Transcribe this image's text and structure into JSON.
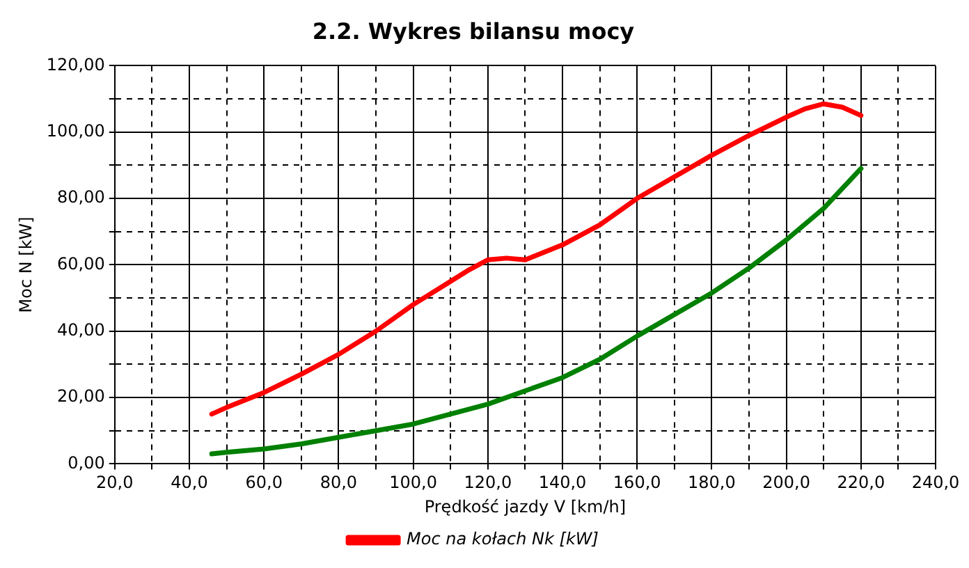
{
  "chart_data": {
    "type": "line",
    "title": "2.2. Wykres bilansu mocy",
    "xlabel": "Prędkość jazdy V [km/h]",
    "ylabel": "Moc N [kW]",
    "xlim": [
      20,
      240
    ],
    "ylim": [
      0,
      120
    ],
    "xticks": [
      {
        "value": 20,
        "label": "20,0"
      },
      {
        "value": 30,
        "label": null
      },
      {
        "value": 40,
        "label": "40,0"
      },
      {
        "value": 50,
        "label": null
      },
      {
        "value": 60,
        "label": "60,0"
      },
      {
        "value": 70,
        "label": null
      },
      {
        "value": 80,
        "label": "80,0"
      },
      {
        "value": 90,
        "label": null
      },
      {
        "value": 100,
        "label": "100,0"
      },
      {
        "value": 110,
        "label": null
      },
      {
        "value": 120,
        "label": "120,0"
      },
      {
        "value": 130,
        "label": null
      },
      {
        "value": 140,
        "label": "140,0"
      },
      {
        "value": 150,
        "label": null
      },
      {
        "value": 160,
        "label": "160,0"
      },
      {
        "value": 170,
        "label": null
      },
      {
        "value": 180,
        "label": "180,0"
      },
      {
        "value": 190,
        "label": null
      },
      {
        "value": 200,
        "label": "200,0"
      },
      {
        "value": 210,
        "label": null
      },
      {
        "value": 220,
        "label": "220,0"
      },
      {
        "value": 230,
        "label": null
      },
      {
        "value": 240,
        "label": "240,0"
      }
    ],
    "yticks": [
      {
        "value": 0,
        "label": "0,00"
      },
      {
        "value": 10,
        "label": null
      },
      {
        "value": 20,
        "label": "20,00"
      },
      {
        "value": 30,
        "label": null
      },
      {
        "value": 40,
        "label": "40,00"
      },
      {
        "value": 50,
        "label": null
      },
      {
        "value": 60,
        "label": "60,00"
      },
      {
        "value": 70,
        "label": null
      },
      {
        "value": 80,
        "label": "80,00"
      },
      {
        "value": 90,
        "label": null
      },
      {
        "value": 100,
        "label": "100,00"
      },
      {
        "value": 110,
        "label": null
      },
      {
        "value": 120,
        "label": "120,00"
      }
    ],
    "grid": true,
    "legend": "bottom",
    "marker": "none",
    "line_style": "solid",
    "series": [
      {
        "name": "Moc na kołach Nk [kW]",
        "color": "#ff0000",
        "x": [
          46,
          50,
          60,
          70,
          80,
          90,
          100,
          110,
          115,
          120,
          125,
          130,
          140,
          150,
          160,
          170,
          180,
          190,
          200,
          205,
          210,
          215,
          220
        ],
        "values": [
          15,
          17,
          21.5,
          27,
          33,
          40,
          48,
          55,
          58.5,
          61.5,
          62,
          61.5,
          66,
          72,
          80,
          86.5,
          93,
          99,
          104.5,
          107,
          108.5,
          107.5,
          105
        ]
      },
      {
        "color": "#008000",
        "x": [
          46,
          50,
          60,
          70,
          80,
          90,
          100,
          110,
          120,
          130,
          140,
          150,
          160,
          170,
          180,
          190,
          200,
          210,
          220
        ],
        "values": [
          3,
          3.5,
          4.5,
          6,
          8,
          10,
          12,
          15,
          18,
          22,
          26,
          31.5,
          38.5,
          45,
          51.5,
          59,
          67.5,
          77,
          89
        ]
      }
    ]
  }
}
